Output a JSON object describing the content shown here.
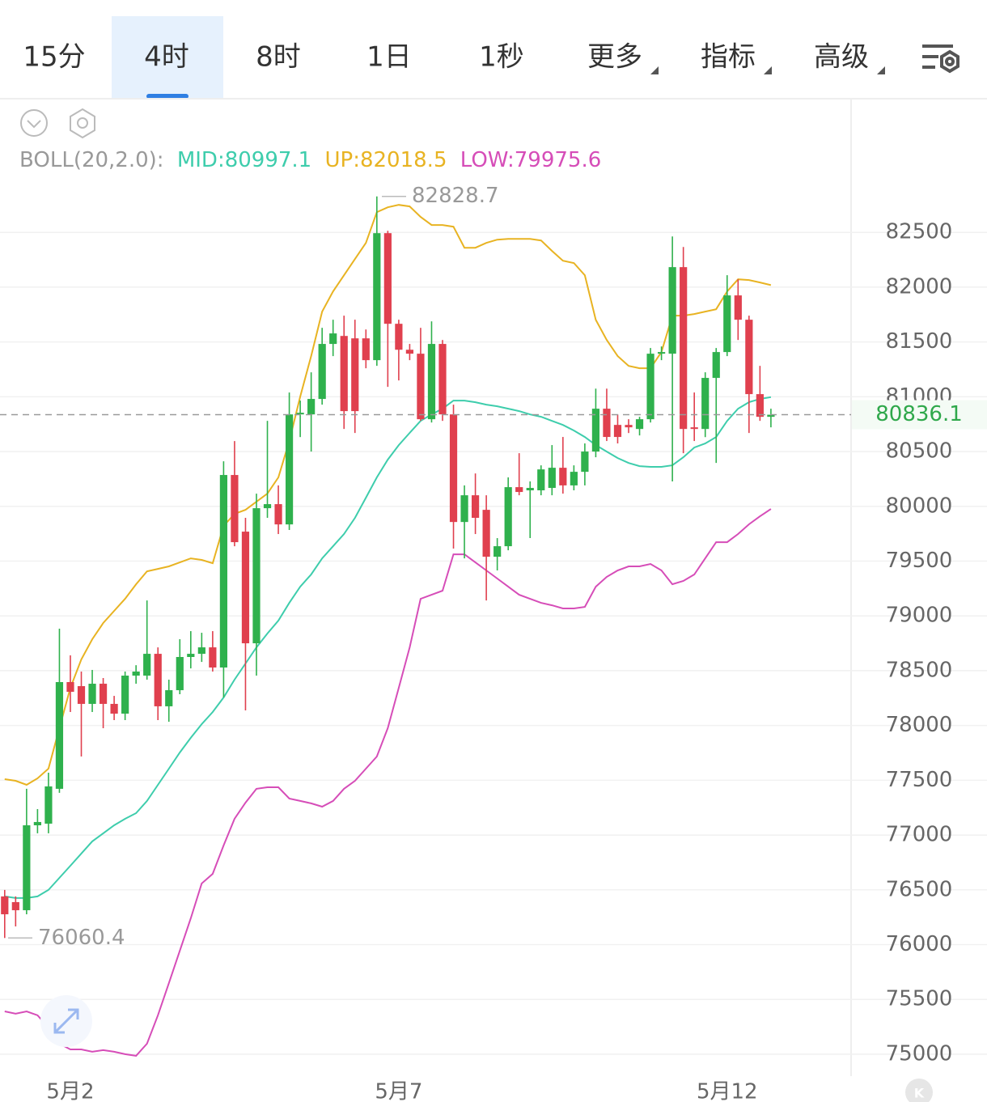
{
  "tabs": [
    "15分",
    "4时",
    "8时",
    "1日",
    "1秒",
    "更多",
    "指标",
    "高级"
  ],
  "selected_tab": 1,
  "chart_data": {
    "type": "candlestick",
    "indicator_label": "BOLL(20,2.0):",
    "categories": [
      null,
      null,
      null,
      null,
      null,
      null,
      "5月2",
      null,
      null,
      null,
      null,
      null,
      null,
      null,
      null,
      null,
      null,
      null,
      null,
      null,
      null,
      null,
      null,
      null,
      null,
      null,
      null,
      null,
      null,
      null,
      null,
      null,
      null,
      null,
      null,
      null,
      "5月7",
      null,
      null,
      null,
      null,
      null,
      null,
      null,
      null,
      null,
      null,
      null,
      null,
      null,
      null,
      null,
      null,
      null,
      null,
      null,
      null,
      null,
      null,
      null,
      null,
      null,
      null,
      null,
      null,
      null,
      "5月12",
      null,
      null,
      null,
      null
    ],
    "open": [
      76440,
      76388,
      76314,
      77089,
      77104,
      77422,
      78396,
      78359,
      78197,
      78381,
      78197,
      78108,
      78455,
      78455,
      78654,
      78175,
      78322,
      78625,
      78654,
      78713,
      78529,
      80286,
      79769,
      78750,
      79983,
      80020,
      79835,
      80839,
      80839,
      80980,
      81482,
      81555,
      81533,
      81533,
      81334,
      82493,
      81666,
      81429,
      81393,
      80795,
      81482,
      80839,
      79857,
      80101,
      79968,
      79540,
      79636,
      80175,
      80146,
      80146,
      80168,
      80352,
      80191,
      80315,
      80500,
      80891,
      80743,
      80743,
      80706,
      80795,
      81393,
      81393,
      82183,
      80721,
      80706,
      81172,
      81408,
      81925,
      81703,
      81024,
      80817
    ],
    "high": [
      76499,
      76440,
      77422,
      77237,
      77569,
      78883,
      78640,
      78492,
      78507,
      78433,
      78270,
      78492,
      78550,
      79141,
      78713,
      78418,
      78787,
      78861,
      78846,
      78861,
      80411,
      80596,
      79895,
      80116,
      80780,
      80191,
      81039,
      80965,
      81223,
      81629,
      81703,
      81740,
      81703,
      81614,
      82828.7,
      82515,
      81703,
      81482,
      81629,
      81688,
      81518,
      80928,
      80191,
      80300,
      80101,
      79710,
      80264,
      80485,
      80227,
      80374,
      80559,
      80633,
      80374,
      80574,
      81074,
      81074,
      80839,
      80795,
      80817,
      81445,
      81459,
      82463,
      82367,
      81039,
      81223,
      81445,
      82109,
      82072,
      81740,
      81282,
      80891
    ],
    "low": [
      76060.4,
      76166,
      76277,
      77016,
      77016,
      77385,
      78123,
      77717,
      78123,
      77975,
      78049,
      78049,
      78381,
      78418,
      78049,
      78034,
      78285,
      78521,
      78580,
      78492,
      78256,
      79636,
      78138,
      78455,
      79895,
      79747,
      79784,
      80632,
      80500,
      80928,
      81371,
      80706,
      80669,
      81260,
      81282,
      81090,
      81149,
      81334,
      80780,
      80765,
      80780,
      79614,
      79525,
      79747,
      79141,
      79415,
      79599,
      80101,
      79710,
      80101,
      80101,
      80116,
      80146,
      80191,
      80448,
      80596,
      80574,
      80669,
      80647,
      80765,
      81334,
      80227,
      80485,
      80596,
      80632,
      80396,
      81371,
      81518,
      80669,
      80780,
      80721
    ],
    "close": [
      76277,
      76314,
      77089,
      77119,
      77444,
      78396,
      78307,
      78197,
      78381,
      78197,
      78108,
      78455,
      78492,
      78654,
      78175,
      78322,
      78625,
      78654,
      78713,
      78529,
      80286,
      79673,
      78750,
      79983,
      80020,
      79835,
      80839,
      80854,
      80980,
      81482,
      81578,
      80869,
      80869,
      81334,
      82493,
      81666,
      81429,
      81393,
      80795,
      81482,
      80839,
      79857,
      80101,
      79895,
      79540,
      79636,
      80175,
      80131,
      80168,
      80337,
      80352,
      80191,
      80315,
      80500,
      80891,
      80633,
      80633,
      80721,
      80795,
      81393,
      81408,
      82183,
      80706,
      80706,
      81172,
      81408,
      81925,
      81703,
      81024,
      80817,
      80836.1
    ],
    "up_color": "#2fb14d",
    "down_color": "#e0404e",
    "series": [
      {
        "name": "MID:80997.1",
        "color": "#3ecdac",
        "values": [
          76440,
          76425,
          76425,
          76440,
          76499,
          76609,
          76720,
          76831,
          76942,
          77016,
          77089,
          77148,
          77200,
          77311,
          77458,
          77606,
          77754,
          77887,
          78012,
          78123,
          78256,
          78418,
          78566,
          78713,
          78839,
          78957,
          79119,
          79267,
          79378,
          79525,
          79636,
          79747,
          79895,
          80079,
          80264,
          80426,
          80559,
          80670,
          80780,
          80839,
          80891,
          80965,
          80965,
          80950,
          80928,
          80913,
          80891,
          80869,
          80839,
          80817,
          80780,
          80743,
          80692,
          80633,
          80559,
          80500,
          80441,
          80396,
          80367,
          80360,
          80360,
          80374,
          80448,
          80537,
          80574,
          80633,
          80780,
          80891,
          80950,
          80980,
          80997.1
        ]
      },
      {
        "name": "UP:82018.5",
        "color": "#e8b322",
        "values": [
          77510,
          77495,
          77458,
          77517,
          77606,
          77975,
          78344,
          78603,
          78787,
          78935,
          79046,
          79156,
          79289,
          79407,
          79429,
          79452,
          79488,
          79525,
          79511,
          79481,
          79821,
          79931,
          79968,
          80042,
          80116,
          80264,
          80596,
          81002,
          81371,
          81777,
          81961,
          82109,
          82257,
          82404,
          82685,
          82729,
          82751,
          82737,
          82641,
          82567,
          82567,
          82552,
          82360,
          82360,
          82404,
          82434,
          82441,
          82441,
          82441,
          82426,
          82331,
          82242,
          82220,
          82109,
          81703,
          81519,
          81371,
          81282,
          81260,
          81260,
          81408,
          81740,
          81740,
          81755,
          81777,
          81799,
          81961,
          82072,
          82065,
          82043,
          82018.5
        ]
      },
      {
        "name": "LOW:79975.6",
        "color": "#d64db8",
        "values": [
          75391,
          75369,
          75391,
          75355,
          75244,
          75096,
          75044,
          75044,
          75022,
          75037,
          75022,
          75000,
          74985,
          75096,
          75355,
          75650,
          75945,
          76240,
          76558,
          76646,
          76905,
          77148,
          77296,
          77422,
          77436,
          77436,
          77333,
          77311,
          77289,
          77259,
          77311,
          77422,
          77495,
          77606,
          77717,
          77975,
          78344,
          78713,
          79156,
          79193,
          79230,
          79562,
          79562,
          79488,
          79415,
          79341,
          79267,
          79193,
          79156,
          79119,
          79097,
          79068,
          79068,
          79082,
          79267,
          79356,
          79415,
          79452,
          79452,
          79474,
          79415,
          79289,
          79319,
          79378,
          79525,
          79673,
          79673,
          79747,
          79836,
          79909,
          79975.6
        ]
      }
    ],
    "ylim": [
      74800,
      83720
    ],
    "yticks": [
      75000,
      75500,
      76000,
      76500,
      77000,
      77500,
      78000,
      78500,
      79000,
      79500,
      80000,
      80500,
      81000,
      81500,
      82000,
      82500
    ],
    "grid": true,
    "high_label": 82828.7,
    "low_label": 76060.4,
    "last_price": 80836.1
  }
}
